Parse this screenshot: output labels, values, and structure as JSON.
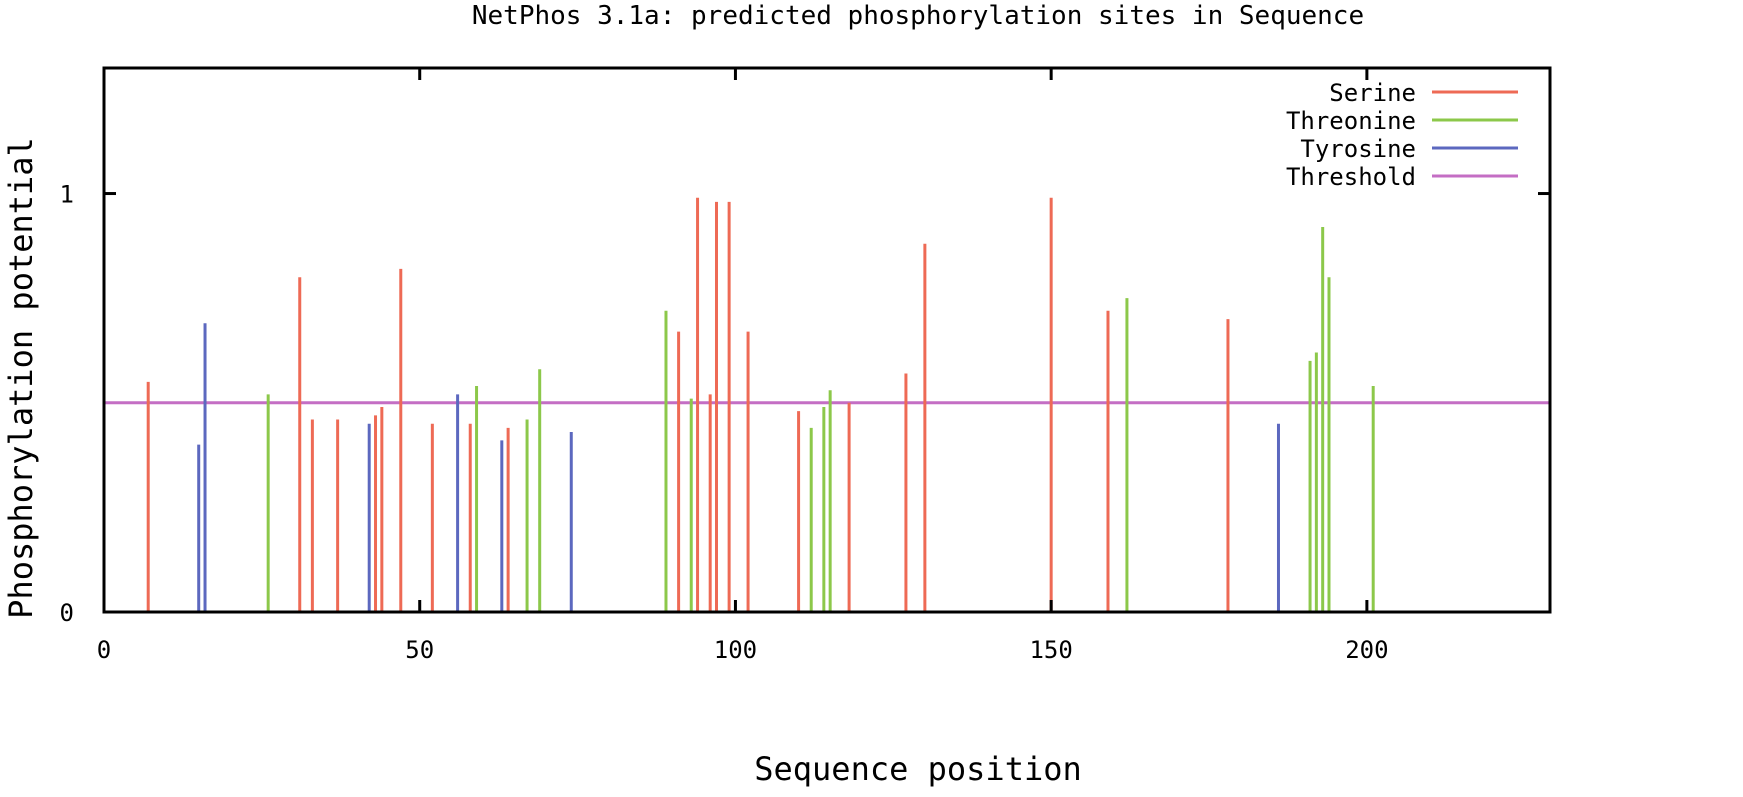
{
  "chart_data": {
    "type": "bar",
    "title": "NetPhos 3.1a: predicted phosphorylation sites in Sequence",
    "xlabel": "Sequence position",
    "ylabel": "Phosphorylation potential",
    "xlim": [
      0,
      229
    ],
    "ylim": [
      0,
      1.3
    ],
    "x_ticks": [
      0,
      50,
      100,
      150,
      200
    ],
    "y_ticks": [
      0,
      1
    ],
    "threshold": 0.5,
    "legend_position": "top-right",
    "colors": {
      "Serine": "#ee6a55",
      "Threonine": "#8cc84a",
      "Tyrosine": "#5c68bf",
      "Threshold": "#c46ec4"
    },
    "legend": [
      "Serine",
      "Threonine",
      "Tyrosine",
      "Threshold"
    ],
    "series": [
      {
        "name": "Serine",
        "points": [
          [
            7,
            0.55
          ],
          [
            31,
            0.8
          ],
          [
            33,
            0.46
          ],
          [
            37,
            0.46
          ],
          [
            43,
            0.47
          ],
          [
            44,
            0.49
          ],
          [
            47,
            0.82
          ],
          [
            52,
            0.45
          ],
          [
            58,
            0.45
          ],
          [
            64,
            0.44
          ],
          [
            91,
            0.67
          ],
          [
            94,
            0.99
          ],
          [
            96,
            0.52
          ],
          [
            97,
            0.98
          ],
          [
            99,
            0.98
          ],
          [
            102,
            0.67
          ],
          [
            110,
            0.48
          ],
          [
            118,
            0.5
          ],
          [
            127,
            0.57
          ],
          [
            130,
            0.88
          ],
          [
            150,
            0.99
          ],
          [
            159,
            0.72
          ],
          [
            178,
            0.7
          ]
        ]
      },
      {
        "name": "Threonine",
        "points": [
          [
            26,
            0.52
          ],
          [
            59,
            0.54
          ],
          [
            67,
            0.46
          ],
          [
            69,
            0.58
          ],
          [
            89,
            0.72
          ],
          [
            93,
            0.51
          ],
          [
            112,
            0.44
          ],
          [
            114,
            0.49
          ],
          [
            115,
            0.53
          ],
          [
            162,
            0.75
          ],
          [
            191,
            0.6
          ],
          [
            192,
            0.62
          ],
          [
            193,
            0.92
          ],
          [
            194,
            0.8
          ],
          [
            201,
            0.54
          ]
        ]
      },
      {
        "name": "Tyrosine",
        "points": [
          [
            15,
            0.4
          ],
          [
            16,
            0.69
          ],
          [
            42,
            0.45
          ],
          [
            56,
            0.52
          ],
          [
            63,
            0.41
          ],
          [
            74,
            0.43
          ],
          [
            186,
            0.45
          ]
        ]
      }
    ]
  }
}
